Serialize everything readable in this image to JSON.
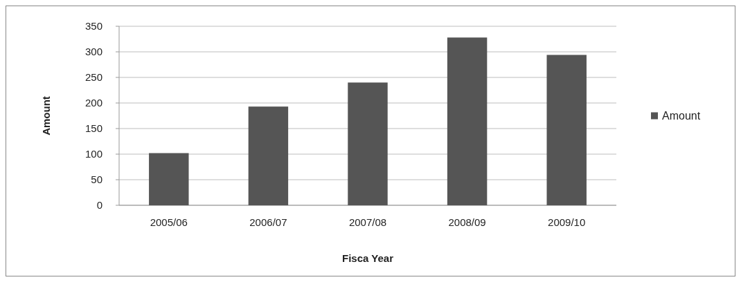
{
  "chart_data": {
    "type": "bar",
    "xlabel": "Fisca Year",
    "ylabel": "Amount",
    "categories": [
      "2005/06",
      "2006/07",
      "2007/08",
      "2008/09",
      "2009/10"
    ],
    "series": [
      {
        "name": "Amount",
        "color": "#555555",
        "values": [
          102,
          193,
          240,
          328,
          294
        ]
      }
    ],
    "ylim": [
      0,
      350
    ],
    "yticks": [
      0,
      50,
      100,
      150,
      200,
      250,
      300,
      350
    ],
    "grid": "y",
    "legend": "right"
  }
}
